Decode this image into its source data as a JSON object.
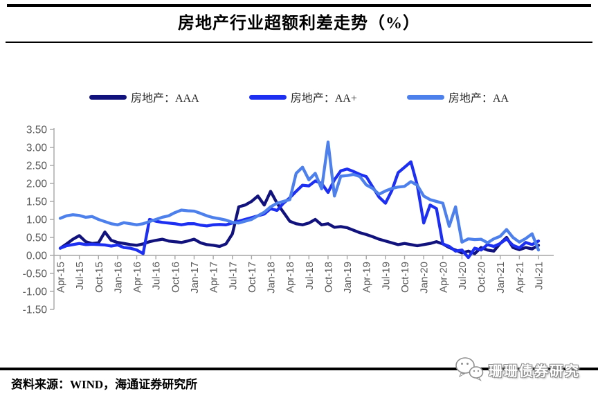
{
  "header": {
    "title": "房地产行业超额利差走势（%）"
  },
  "legend": [
    {
      "label": "房地产：AAA",
      "color": "#12127d"
    },
    {
      "label": "房地产：AA+",
      "color": "#1d2ff0"
    },
    {
      "label": "房地产：AA",
      "color": "#4e80ec"
    }
  ],
  "footer": {
    "source": "资料来源：WIND，海通证券研究所",
    "watermark": "珊珊债券研究",
    "watermark_icon": "wechat-bubbles-icon"
  },
  "chart_data": {
    "type": "line",
    "title": "房地产行业超额利差走势（%）",
    "xlabel": "",
    "ylabel": "",
    "ylim": [
      -1.5,
      3.5
    ],
    "ytick_step": 0.5,
    "tick_every": 3,
    "grid": false,
    "legend_position": "top-center",
    "axis_color": "#a6a6a6",
    "label_color": "#595959",
    "x": [
      "Apr-15",
      "May-15",
      "Jun-15",
      "Jul-15",
      "Aug-15",
      "Sep-15",
      "Oct-15",
      "Nov-15",
      "Dec-15",
      "Jan-16",
      "Feb-16",
      "Mar-16",
      "Apr-16",
      "May-16",
      "Jun-16",
      "Jul-16",
      "Aug-16",
      "Sep-16",
      "Oct-16",
      "Nov-16",
      "Dec-16",
      "Jan-17",
      "Feb-17",
      "Mar-17",
      "Apr-17",
      "May-17",
      "Jun-17",
      "Jul-17",
      "Aug-17",
      "Sep-17",
      "Oct-17",
      "Nov-17",
      "Dec-17",
      "Jan-18",
      "Feb-18",
      "Mar-18",
      "Apr-18",
      "May-18",
      "Jun-18",
      "Jul-18",
      "Aug-18",
      "Sep-18",
      "Oct-18",
      "Nov-18",
      "Dec-18",
      "Jan-19",
      "Feb-19",
      "Mar-19",
      "Apr-19",
      "May-19",
      "Jun-19",
      "Jul-19",
      "Aug-19",
      "Sep-19",
      "Oct-19",
      "Nov-19",
      "Dec-19",
      "Jan-20",
      "Feb-20",
      "Mar-20",
      "Apr-20",
      "May-20",
      "Jun-20",
      "Jul-20",
      "Aug-20",
      "Sep-20",
      "Oct-20",
      "Nov-20",
      "Dec-20",
      "Jan-21",
      "Feb-21",
      "Mar-21",
      "Apr-21",
      "May-21",
      "Jun-21",
      "Jul-21"
    ],
    "series": [
      {
        "name": "房地产：AAA",
        "color": "#12127d",
        "values": [
          0.2,
          0.32,
          0.45,
          0.55,
          0.38,
          0.33,
          0.35,
          0.65,
          0.42,
          0.36,
          0.33,
          0.3,
          0.28,
          0.32,
          0.38,
          0.42,
          0.45,
          0.4,
          0.38,
          0.36,
          0.4,
          0.45,
          0.35,
          0.3,
          0.28,
          0.25,
          0.32,
          0.6,
          1.35,
          1.4,
          1.5,
          1.65,
          1.4,
          1.78,
          1.45,
          1.2,
          0.95,
          0.88,
          0.85,
          0.9,
          1.0,
          0.85,
          0.88,
          0.78,
          0.8,
          0.77,
          0.7,
          0.63,
          0.58,
          0.52,
          0.45,
          0.4,
          0.35,
          0.3,
          0.33,
          0.3,
          0.27,
          0.3,
          0.33,
          0.38,
          0.32,
          0.22,
          0.15,
          0.07,
          0.12,
          0.05,
          0.22,
          0.15,
          0.12,
          0.33,
          0.5,
          0.22,
          0.16,
          0.22,
          0.18,
          0.28
        ]
      },
      {
        "name": "房地产：AA+",
        "color": "#1d2ff0",
        "values": [
          0.2,
          0.27,
          0.3,
          0.33,
          0.3,
          0.31,
          0.3,
          0.29,
          0.26,
          0.29,
          0.22,
          0.2,
          0.15,
          0.05,
          1.0,
          0.95,
          0.92,
          0.9,
          0.88,
          0.85,
          0.88,
          0.88,
          0.84,
          0.82,
          0.85,
          0.86,
          0.85,
          0.9,
          0.95,
          1.0,
          1.05,
          1.1,
          1.15,
          1.3,
          1.25,
          1.45,
          1.6,
          1.78,
          1.95,
          1.93,
          2.07,
          2.0,
          1.75,
          2.1,
          2.35,
          2.4,
          2.33,
          2.25,
          2.19,
          1.9,
          1.62,
          1.45,
          1.8,
          2.3,
          2.45,
          2.6,
          1.95,
          0.9,
          1.4,
          1.3,
          0.32,
          0.25,
          0.12,
          0.15,
          -0.06,
          0.2,
          0.15,
          0.3,
          0.25,
          0.33,
          0.46,
          0.28,
          0.21,
          0.36,
          0.3,
          0.4
        ]
      },
      {
        "name": "房地产：AA",
        "color": "#4e80ec",
        "values": [
          1.03,
          1.1,
          1.13,
          1.11,
          1.06,
          1.08,
          1.0,
          0.94,
          0.88,
          0.85,
          0.91,
          0.88,
          0.85,
          0.88,
          0.94,
          1.0,
          1.06,
          1.1,
          1.19,
          1.26,
          1.24,
          1.23,
          1.17,
          1.1,
          1.05,
          1.02,
          0.98,
          0.92,
          0.9,
          0.95,
          1.0,
          1.1,
          1.2,
          1.35,
          1.45,
          1.5,
          1.55,
          2.28,
          2.45,
          2.1,
          2.28,
          1.85,
          3.15,
          1.65,
          2.2,
          2.22,
          2.25,
          2.19,
          1.96,
          1.86,
          1.7,
          1.79,
          1.86,
          1.9,
          1.92,
          2.05,
          1.95,
          1.65,
          1.55,
          1.5,
          1.45,
          0.81,
          1.35,
          0.37,
          0.46,
          0.44,
          0.45,
          0.35,
          0.46,
          0.53,
          0.72,
          0.5,
          0.37,
          0.47,
          0.6,
          0.15
        ]
      }
    ]
  }
}
